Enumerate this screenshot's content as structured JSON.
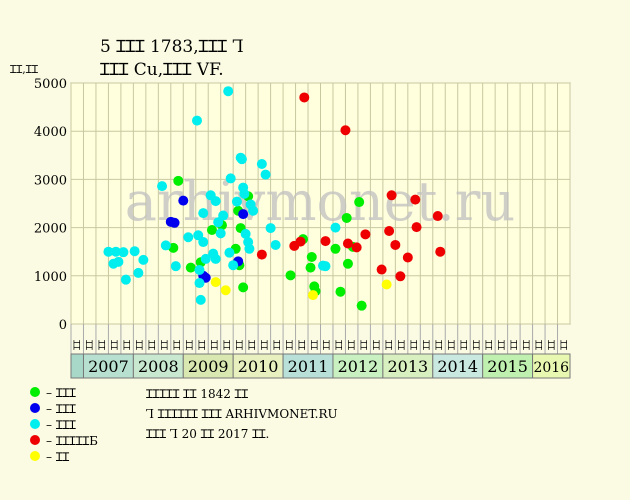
{
  "header": {
    "title_line1": "5 ꞮꞮꞮ 1783,ꞮꞮꞮ Ꞁ",
    "title_line2": "ꞮꞮꞮ Cu,ꞮꞮꞮ VF.",
    "y_unit": "ꞮꞮ,ꞮꞮ"
  },
  "watermark": "arhivmonet.ru",
  "info": {
    "line1": "ꞮꞮꞮꞮꞮ ꞮꞮ 1842 ꞮꞮ",
    "line2": "Ꞁ ꞮꞮꞮꞮꞮꞮ ꞮꞮꞮ ARHIVMONET.RU",
    "line3": "ꞮꞮꞮ Ꞁ 20 ꞮꞮ 2017 ꞮꞮ."
  },
  "colors": {
    "background": "#fbfbe3",
    "plot_bg": "#ffffde",
    "grid": "#c8c8a0",
    "green": "#00ee00",
    "blue": "#0000ee",
    "cyan": "#00eeee",
    "red": "#ee0000",
    "yellow": "#ffff00"
  },
  "chart_data": {
    "type": "scatter",
    "title": "5 ꞮꞮꞮ 1783,ꞮꞮꞮ Ꞁ ꞮꞮꞮ Cu,ꞮꞮꞮ VF.",
    "ylabel": "ꞮꞮ,ꞮꞮ",
    "ylim": [
      0,
      5000
    ],
    "yticks": [
      0,
      1000,
      2000,
      3000,
      4000,
      5000
    ],
    "grid": true,
    "quarters": [
      "ꞮꞮ",
      "ꞮꞮ",
      "ꞮꞮ",
      "ꞮꞮ",
      "ꞮꞮ",
      "ꞮꞮ",
      "ꞮꞮ",
      "ꞮꞮ",
      "ꞮꞮ",
      "ꞮꞮ",
      "ꞮꞮ",
      "ꞮꞮ",
      "ꞮꞮ",
      "ꞮꞮ",
      "ꞮꞮ",
      "ꞮꞮ",
      "ꞮꞮ",
      "ꞮꞮ",
      "ꞮꞮ",
      "ꞮꞮ",
      "ꞮꞮ",
      "ꞮꞮ",
      "ꞮꞮ",
      "ꞮꞮ",
      "ꞮꞮ",
      "ꞮꞮ",
      "ꞮꞮ",
      "ꞮꞮ",
      "ꞮꞮ",
      "ꞮꞮ",
      "ꞮꞮ",
      "ꞮꞮ",
      "ꞮꞮ",
      "ꞮꞮ",
      "ꞮꞮ",
      "ꞮꞮ",
      "ꞮꞮ",
      "ꞮꞮ",
      "ꞮꞮ",
      "ꞮꞮ"
    ],
    "years": [
      {
        "label": "",
        "start": 0,
        "end": 1,
        "color": "#a8d8c8"
      },
      {
        "label": "2007",
        "start": 1,
        "end": 5,
        "color": "#b8e0d0"
      },
      {
        "label": "2008",
        "start": 5,
        "end": 9,
        "color": "#c8e8d0"
      },
      {
        "label": "2009",
        "start": 9,
        "end": 13,
        "color": "#d8e8b0"
      },
      {
        "label": "2010",
        "start": 13,
        "end": 17,
        "color": "#e8f0c0"
      },
      {
        "label": "2011",
        "start": 17,
        "end": 21,
        "color": "#b8e0d8"
      },
      {
        "label": "2012",
        "start": 21,
        "end": 25,
        "color": "#c8f0c0"
      },
      {
        "label": "2013",
        "start": 25,
        "end": 29,
        "color": "#d8f0c0"
      },
      {
        "label": "2014",
        "start": 29,
        "end": 33,
        "color": "#c8e8e0"
      },
      {
        "label": "2015",
        "start": 33,
        "end": 37,
        "color": "#c0f0b0"
      },
      {
        "label": "2016",
        "start": 37,
        "end": 40,
        "color": "#e8f8b0"
      }
    ],
    "legend": [
      {
        "label": "– ꞮꞮꞮ",
        "color": "#00ee00"
      },
      {
        "label": "– ꞮꞮꞮ",
        "color": "#0000ee"
      },
      {
        "label": "– ꞮꞮꞮ",
        "color": "#00eeee"
      },
      {
        "label": "– ꞮꞮꞮꞮꞮБ",
        "color": "#ee0000"
      },
      {
        "label": "– ꞮꞮ",
        "color": "#ffff00"
      }
    ],
    "series": [
      {
        "color": "#00ee00",
        "points": [
          [
            8.6,
            2970
          ],
          [
            8.2,
            1580
          ],
          [
            9.6,
            1170
          ],
          [
            10.4,
            1280
          ],
          [
            11.3,
            1950
          ],
          [
            12.1,
            2050
          ],
          [
            13.2,
            1560
          ],
          [
            13.4,
            2350
          ],
          [
            13.5,
            1220
          ],
          [
            13.6,
            1990
          ],
          [
            13.8,
            760
          ],
          [
            14.2,
            2650
          ],
          [
            17.6,
            1010
          ],
          [
            18.6,
            1760
          ],
          [
            19.2,
            1170
          ],
          [
            19.3,
            1390
          ],
          [
            19.5,
            780
          ],
          [
            19.6,
            680
          ],
          [
            21.2,
            1560
          ],
          [
            21.6,
            670
          ],
          [
            22.1,
            2200
          ],
          [
            22.2,
            1250
          ],
          [
            22.6,
            1600
          ],
          [
            23.1,
            2530
          ],
          [
            23.3,
            380
          ]
        ]
      },
      {
        "color": "#0000ee",
        "points": [
          [
            8.0,
            2120
          ],
          [
            8.3,
            2100
          ],
          [
            9.0,
            2560
          ],
          [
            10.6,
            1000
          ],
          [
            10.8,
            960
          ],
          [
            13.4,
            1300
          ],
          [
            13.8,
            2280
          ]
        ]
      },
      {
        "color": "#00eeee",
        "points": [
          [
            3.0,
            1500
          ],
          [
            3.4,
            1250
          ],
          [
            3.6,
            1500
          ],
          [
            3.8,
            1290
          ],
          [
            4.2,
            1490
          ],
          [
            4.4,
            920
          ],
          [
            5.1,
            1510
          ],
          [
            5.4,
            1060
          ],
          [
            5.8,
            1330
          ],
          [
            7.3,
            2860
          ],
          [
            7.6,
            1630
          ],
          [
            8.4,
            1200
          ],
          [
            9.4,
            1800
          ],
          [
            10.1,
            4220
          ],
          [
            10.2,
            1840
          ],
          [
            10.3,
            1120
          ],
          [
            10.3,
            850
          ],
          [
            10.4,
            500
          ],
          [
            10.6,
            2300
          ],
          [
            10.6,
            1700
          ],
          [
            10.8,
            1350
          ],
          [
            11.2,
            2670
          ],
          [
            11.4,
            1460
          ],
          [
            11.6,
            2550
          ],
          [
            11.6,
            1350
          ],
          [
            11.8,
            2110
          ],
          [
            12.0,
            1880
          ],
          [
            12.2,
            2250
          ],
          [
            12.6,
            4830
          ],
          [
            12.7,
            1480
          ],
          [
            12.8,
            3020
          ],
          [
            13.0,
            1220
          ],
          [
            13.3,
            2540
          ],
          [
            13.6,
            3450
          ],
          [
            13.7,
            3420
          ],
          [
            13.8,
            2830
          ],
          [
            13.9,
            2700
          ],
          [
            14.0,
            1870
          ],
          [
            14.2,
            1700
          ],
          [
            14.3,
            1560
          ],
          [
            14.4,
            2480
          ],
          [
            14.6,
            2350
          ],
          [
            15.3,
            3320
          ],
          [
            15.6,
            3100
          ],
          [
            16.0,
            1990
          ],
          [
            16.4,
            1640
          ],
          [
            20.2,
            1210
          ],
          [
            20.4,
            1200
          ],
          [
            21.2,
            2000
          ]
        ]
      },
      {
        "color": "#ee0000",
        "points": [
          [
            15.3,
            1440
          ],
          [
            17.9,
            1620
          ],
          [
            18.4,
            1710
          ],
          [
            18.7,
            4700
          ],
          [
            20.4,
            1720
          ],
          [
            22.0,
            4020
          ],
          [
            22.2,
            1670
          ],
          [
            22.9,
            1590
          ],
          [
            23.6,
            1860
          ],
          [
            24.9,
            1130
          ],
          [
            25.5,
            1930
          ],
          [
            25.7,
            2670
          ],
          [
            26.0,
            1640
          ],
          [
            26.4,
            990
          ],
          [
            27.0,
            1380
          ],
          [
            27.6,
            2580
          ],
          [
            27.7,
            2010
          ],
          [
            29.4,
            2240
          ],
          [
            29.6,
            1500
          ]
        ]
      },
      {
        "color": "#ffff00",
        "points": [
          [
            11.6,
            870
          ],
          [
            12.4,
            700
          ],
          [
            19.4,
            600
          ],
          [
            25.3,
            820
          ]
        ]
      }
    ]
  }
}
